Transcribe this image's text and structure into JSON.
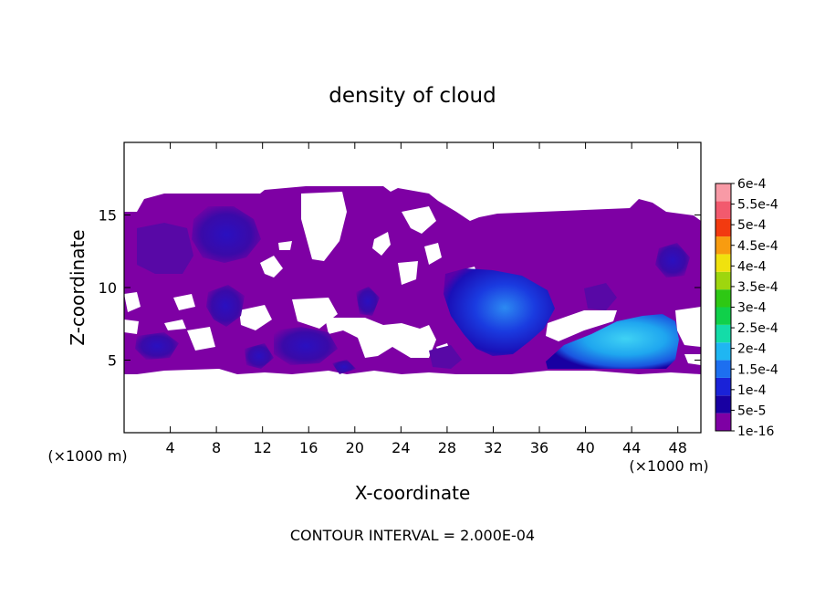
{
  "chart_data": {
    "type": "heatmap",
    "title": "density of cloud",
    "xlabel": "X-coordinate",
    "ylabel": "Z-coordinate",
    "x_unit": "(×1000 m)",
    "z_unit": "(×1000 m)",
    "xlim": [
      0,
      50
    ],
    "ylim": [
      0,
      20
    ],
    "x_ticks": [
      4,
      8,
      12,
      16,
      20,
      24,
      28,
      32,
      36,
      40,
      44,
      48
    ],
    "y_ticks": [
      5,
      10,
      15
    ],
    "footer": "CONTOUR INTERVAL = 2.000E-04",
    "colorbar": {
      "levels": [
        "1e-16",
        "5e-5",
        "1e-4",
        "1.5e-4",
        "2e-4",
        "2.5e-4",
        "3e-4",
        "3.5e-4",
        "4e-4",
        "4.5e-4",
        "5e-4",
        "5.5e-4",
        "6e-4"
      ],
      "colors": [
        "#7e00a4",
        "#1800a2",
        "#1a22d8",
        "#1d6ff0",
        "#1fb6f2",
        "#14dca8",
        "#10d04a",
        "#2ec814",
        "#9ed60e",
        "#f0e20e",
        "#f89c10",
        "#f23a10",
        "#f25a6e",
        "#f89aa6"
      ]
    },
    "regions": [
      {
        "level": "1e-16",
        "x": [
          0,
          50
        ],
        "z": [
          4.1,
          17.3
        ]
      },
      {
        "level": "5e-5",
        "x": [
          6.5,
          11.5
        ],
        "z": [
          11.5,
          15.5
        ]
      },
      {
        "level": "5e-5",
        "x": [
          29,
          37
        ],
        "z": [
          5.5,
          11.5
        ]
      },
      {
        "level": "5e-5",
        "x": [
          37.5,
          48
        ],
        "z": [
          4.3,
          8.4
        ]
      },
      {
        "level": "1e-4",
        "x": [
          30,
          36
        ],
        "z": [
          7,
          10.8
        ]
      },
      {
        "level": "1e-4",
        "x": [
          38.5,
          47
        ],
        "z": [
          4.6,
          7.9
        ]
      },
      {
        "level": "1.5e-4",
        "x": [
          40,
          46.5
        ],
        "z": [
          5,
          7.6
        ]
      }
    ]
  }
}
